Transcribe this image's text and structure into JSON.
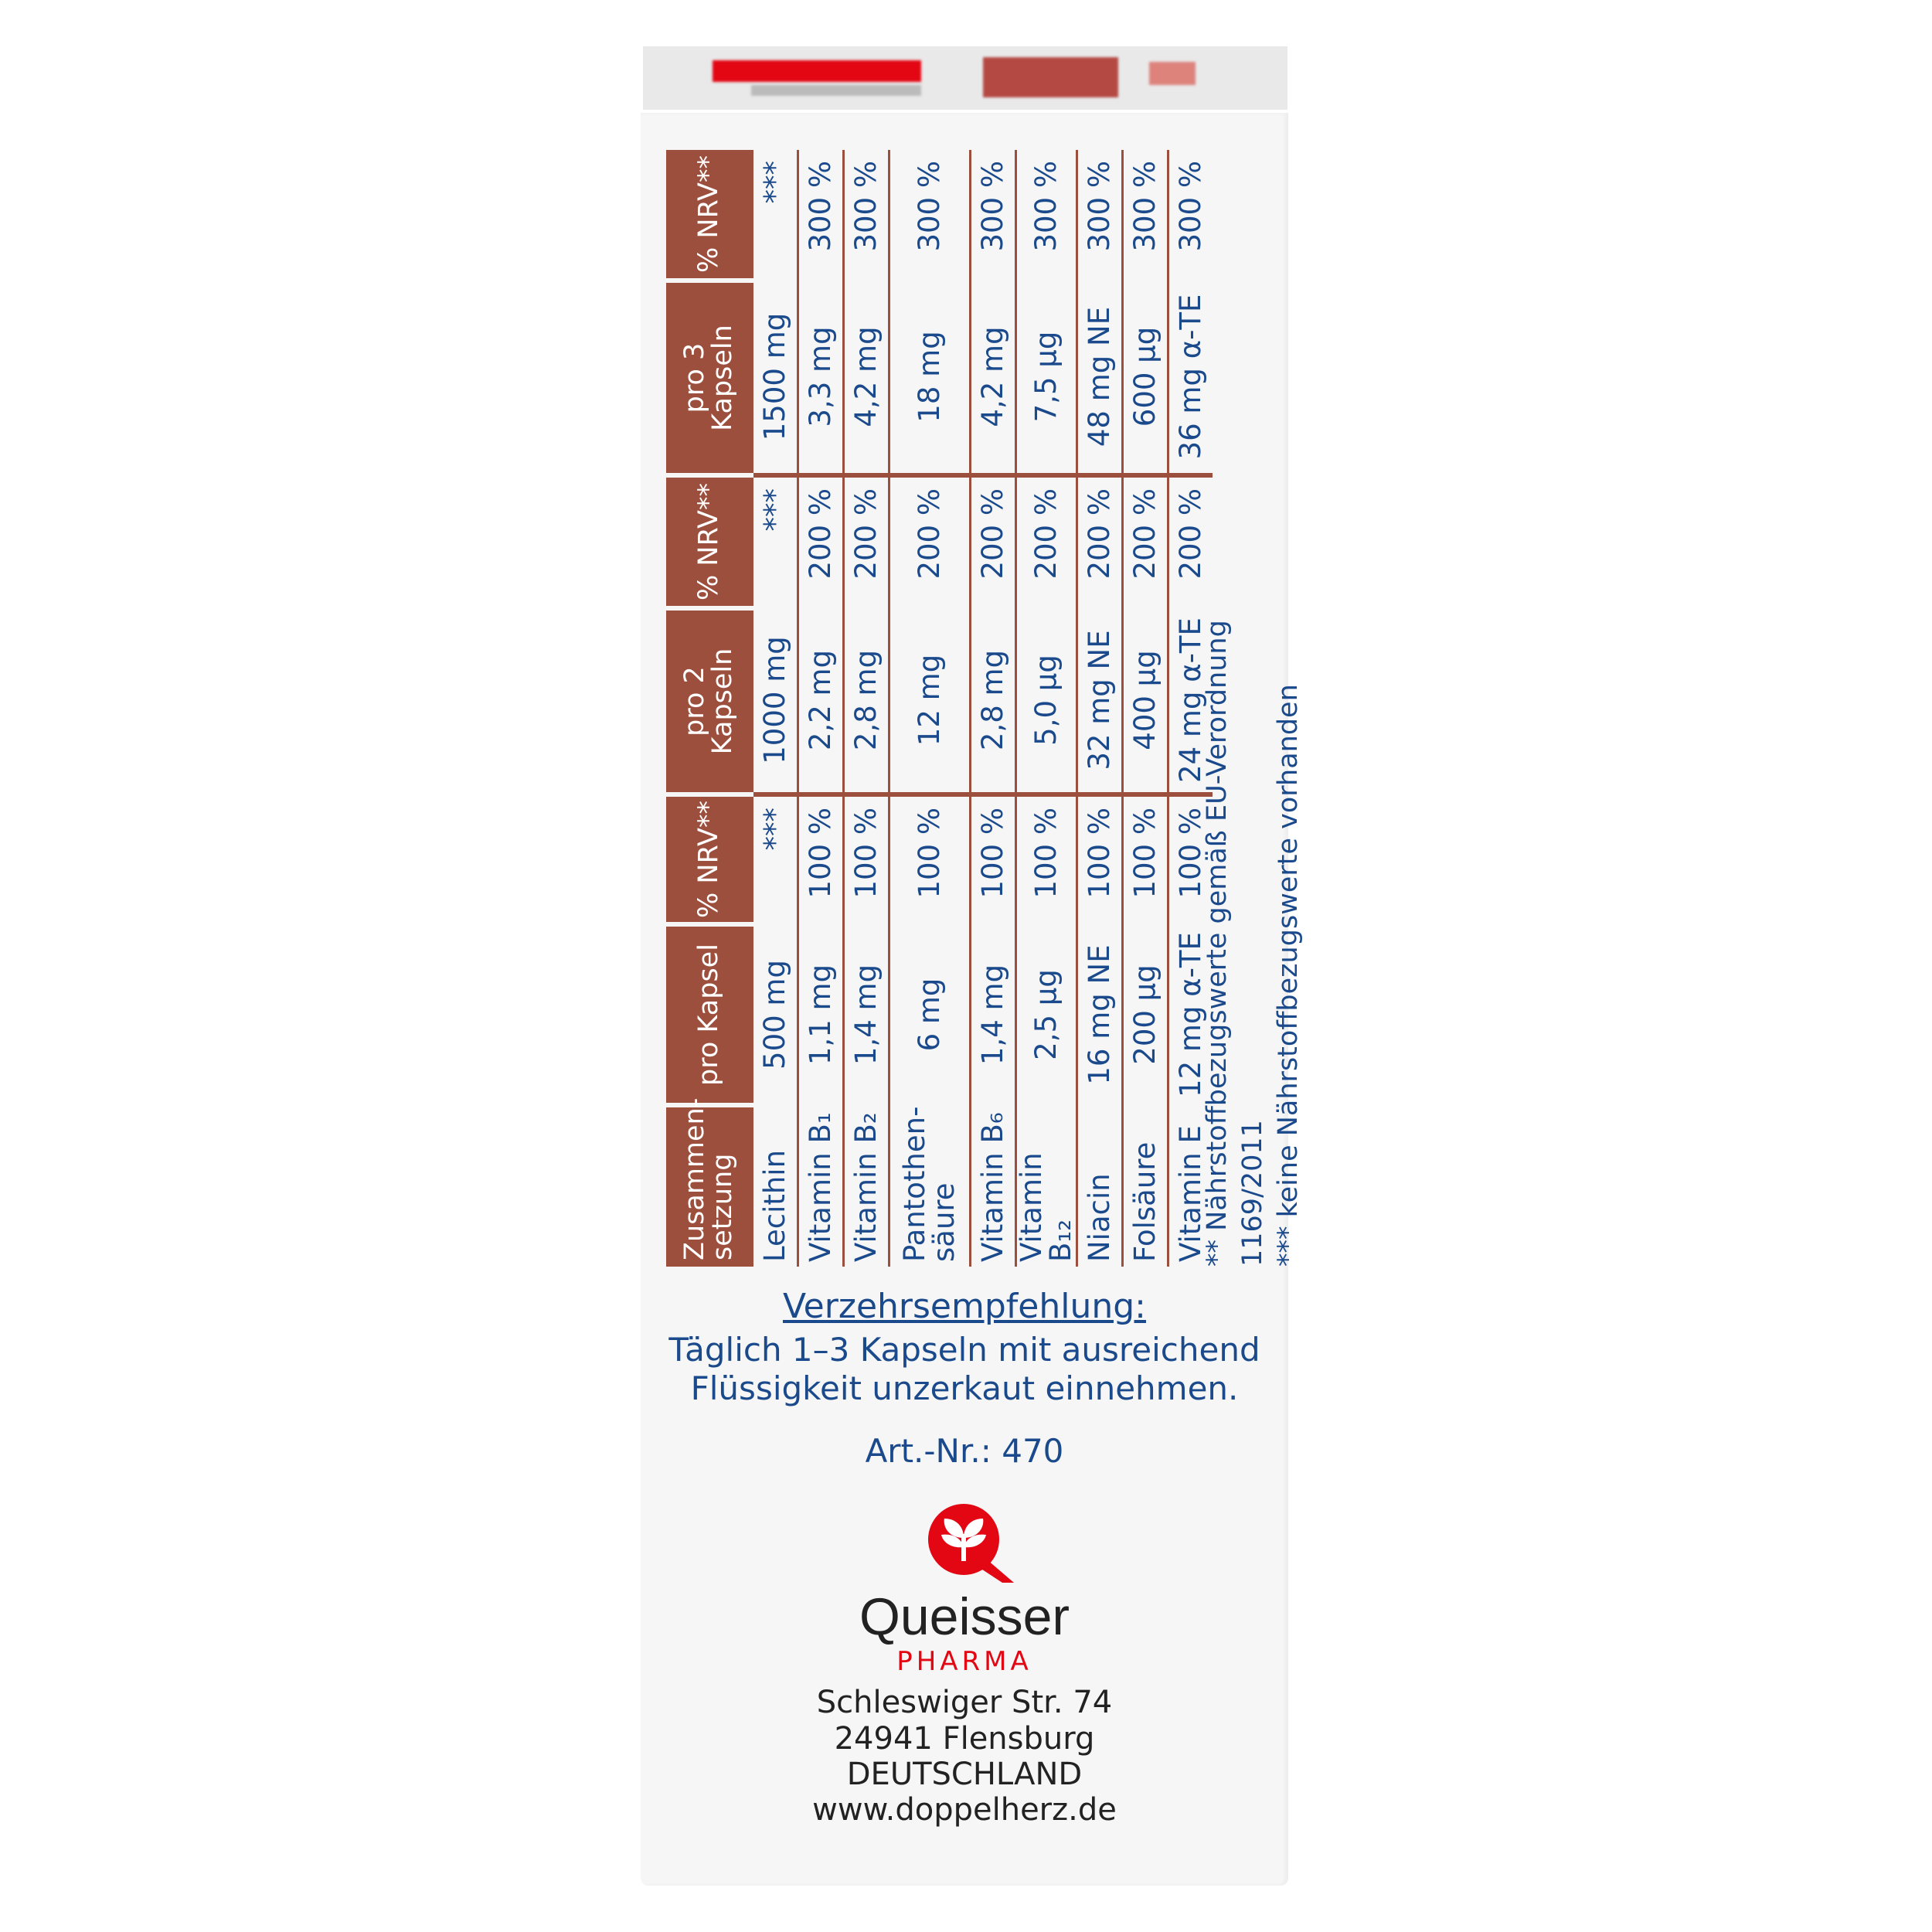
{
  "colors": {
    "header": "#9d4f3d",
    "text": "#1b4a8c",
    "brand_red": "#e30613"
  },
  "table": {
    "headers": [
      "Zusammen-setzung",
      "pro Kapsel",
      "% NRV**",
      "pro 2 Kapseln",
      "% NRV**",
      "pro 3 Kapseln",
      "% NRV**"
    ],
    "rows": [
      [
        "Lecithin",
        "500 mg",
        "***",
        "1000 mg",
        "***",
        "1500 mg",
        "***"
      ],
      [
        "Vitamin B₁",
        "1,1 mg",
        "100 %",
        "2,2 mg",
        "200 %",
        "3,3 mg",
        "300 %"
      ],
      [
        "Vitamin B₂",
        "1,4 mg",
        "100 %",
        "2,8 mg",
        "200 %",
        "4,2 mg",
        "300 %"
      ],
      [
        "Pantothen-säure",
        "6 mg",
        "100 %",
        "12 mg",
        "200 %",
        "18 mg",
        "300 %"
      ],
      [
        "Vitamin B₆",
        "1,4 mg",
        "100 %",
        "2,8 mg",
        "200 %",
        "4,2 mg",
        "300 %"
      ],
      [
        "Vitamin B₁₂",
        "2,5 µg",
        "100 %",
        "5,0 µg",
        "200 %",
        "7,5 µg",
        "300 %"
      ],
      [
        "Niacin",
        "16 mg NE",
        "100 %",
        "32 mg NE",
        "200 %",
        "48 mg NE",
        "300 %"
      ],
      [
        "Folsäure",
        "200 µg",
        "100 %",
        "400 µg",
        "200 %",
        "600 µg",
        "300 %"
      ],
      [
        "Vitamin E",
        "12 mg α-TE",
        "100 %",
        "24 mg α-TE",
        "200 %",
        "36 mg α-TE",
        "300 %"
      ]
    ]
  },
  "footnotes": [
    "**  Nährstoffbezugswerte gemäß EU-Verordnung 1169/2011",
    "*** keine Nährstoffbezugswerte vorhanden"
  ],
  "recommendation": {
    "title": "Verzehrsempfehlung:",
    "line1": "Täglich 1–3 Kapseln mit ausreichend",
    "line2": "Flüssigkeit unzerkaut einnehmen."
  },
  "article": "Art.-Nr.: 470",
  "brand": {
    "name": "Queisser",
    "sub": "PHARMA"
  },
  "address": [
    "Schleswiger Str. 74",
    "24941 Flensburg",
    "DEUTSCHLAND",
    "www.doppelherz.de"
  ]
}
